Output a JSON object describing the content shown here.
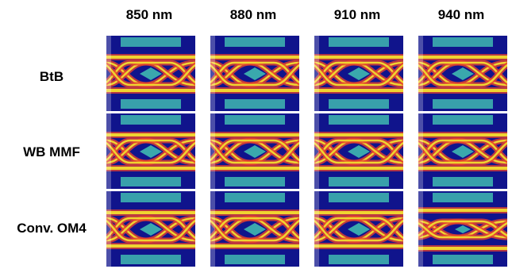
{
  "columns": [
    "850 nm",
    "880 nm",
    "910 nm",
    "940 nm"
  ],
  "rows": [
    "BtB",
    "WB MMF",
    "Conv. OM4"
  ],
  "colors": {
    "background": "#10148c",
    "trace_outer": "#f0d430",
    "trace_mid": "#e8402c",
    "eye_mask": "#3fb8b0"
  }
}
